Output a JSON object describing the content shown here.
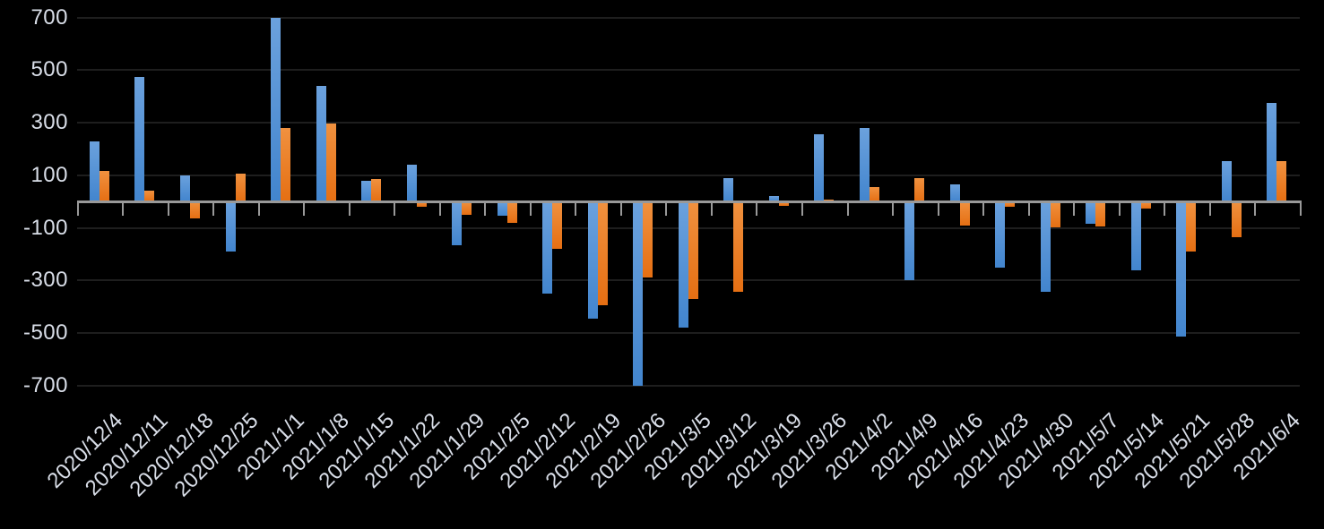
{
  "chart_data": {
    "type": "bar",
    "title": "",
    "xlabel": "",
    "ylabel": "",
    "categories": [
      "2020/12/4",
      "2020/12/11",
      "2020/12/18",
      "2020/12/25",
      "2021/1/1",
      "2021/1/8",
      "2021/1/15",
      "2021/1/22",
      "2021/1/29",
      "2021/2/5",
      "2021/2/12",
      "2021/2/19",
      "2021/2/26",
      "2021/3/5",
      "2021/3/12",
      "2021/3/19",
      "2021/3/26",
      "2021/4/2",
      "2021/4/9",
      "2021/4/16",
      "2021/4/23",
      "2021/4/30",
      "2021/5/7",
      "2021/5/14",
      "2021/5/21",
      "2021/5/28",
      "2021/6/4"
    ],
    "series": [
      {
        "name": "blue-series",
        "color_top": "#6BA1DD",
        "color_bottom": "#4285CE",
        "values": [
          230,
          475,
          100,
          -190,
          700,
          440,
          78,
          140,
          -165,
          -55,
          -350,
          -445,
          -700,
          -480,
          88,
          20,
          255,
          280,
          -300,
          65,
          -250,
          -345,
          -85,
          -260,
          -515,
          155,
          375
        ]
      },
      {
        "name": "orange-series",
        "color_top": "#F0913F",
        "color_bottom": "#E56F13",
        "values": [
          115,
          40,
          -65,
          105,
          280,
          297,
          85,
          -20,
          -50,
          -80,
          -180,
          -395,
          -290,
          -370,
          -345,
          -15,
          8,
          54,
          90,
          -90,
          -20,
          -98,
          -95,
          -28,
          -190,
          -135,
          155
        ]
      }
    ],
    "ylim": [
      -700,
      700
    ],
    "ytick_values": [
      700,
      500,
      300,
      100,
      -100,
      -300,
      -500,
      -700
    ],
    "ytick_labels": [
      "700",
      "500",
      "300",
      "100",
      "-100",
      "-300",
      "-500",
      "-700"
    ],
    "grid": "horizontal",
    "legend": "none",
    "colors": {
      "background": "#000000",
      "gridline": "#1E1E1E",
      "axis": "#999999",
      "tick": "#999999",
      "label": "#D9DEE8"
    }
  }
}
